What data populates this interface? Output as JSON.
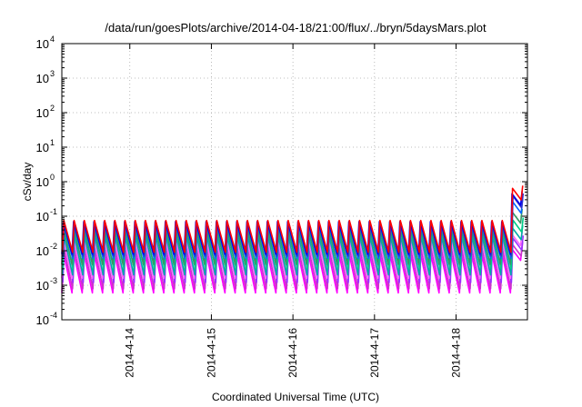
{
  "chart_data": {
    "type": "line",
    "title": "/data/run/goesPlots/archive/2014-04-18/21:00/flux/../bryn/5daysMars.plot",
    "xlabel": "Coordinated Universal Time (UTC)",
    "ylabel": "cSv/day",
    "yscale": "log",
    "ylim": [
      0.0001,
      10000
    ],
    "xlim": [
      "2014-04-13 04:00",
      "2014-04-18 21:00"
    ],
    "x_ticks": [
      "2014-4-14",
      "2014-4-15",
      "2014-4-16",
      "2014-4-17",
      "2014-4-18"
    ],
    "y_ticks": [
      {
        "base": "10",
        "exp": "-4"
      },
      {
        "base": "10",
        "exp": "-3"
      },
      {
        "base": "10",
        "exp": "-2"
      },
      {
        "base": "10",
        "exp": "-1"
      },
      {
        "base": "10",
        "exp": "0"
      },
      {
        "base": "10",
        "exp": "1"
      },
      {
        "base": "10",
        "exp": "2"
      },
      {
        "base": "10",
        "exp": "3"
      },
      {
        "base": "10",
        "exp": "4"
      }
    ],
    "grid": true,
    "legend": "none",
    "pattern": {
      "period_hours": 3,
      "event_start": "2014-04-18 16:00"
    },
    "series": [
      {
        "color": "#ff00ff",
        "peak": 0.009,
        "trough": 0.0006,
        "event_peak": 0.015
      },
      {
        "color": "#cc33cc",
        "peak": 0.012,
        "trough": 0.0008,
        "event_peak": 0.02
      },
      {
        "color": "#9933ff",
        "peak": 0.018,
        "trough": 0.0012,
        "event_peak": 0.03
      },
      {
        "color": "#ff66ff",
        "peak": 0.022,
        "trough": 0.0016,
        "event_peak": 0.04
      },
      {
        "color": "#00aaaa",
        "peak": 0.03,
        "trough": 0.002,
        "event_peak": 0.06
      },
      {
        "color": "#00cc88",
        "peak": 0.04,
        "trough": 0.003,
        "event_peak": 0.1
      },
      {
        "color": "#339966",
        "peak": 0.05,
        "trough": 0.004,
        "event_peak": 0.18
      },
      {
        "color": "#0066ff",
        "peak": 0.06,
        "trough": 0.006,
        "event_peak": 0.35
      },
      {
        "color": "#3333cc",
        "peak": 0.065,
        "trough": 0.007,
        "event_peak": 0.5
      },
      {
        "color": "#0000ee",
        "peak": 0.07,
        "trough": 0.008,
        "event_peak": 0.6
      },
      {
        "color": "#ff0000",
        "peak": 0.075,
        "trough": 0.009,
        "event_peak": 0.85
      }
    ]
  }
}
